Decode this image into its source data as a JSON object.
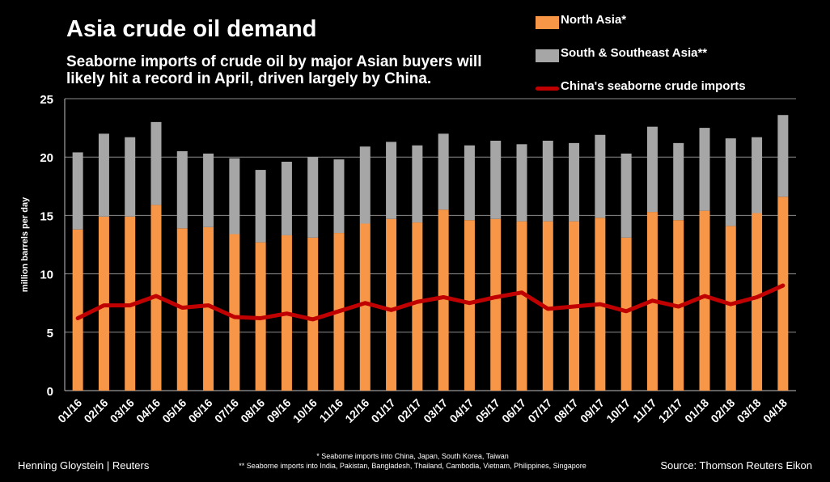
{
  "chart_data": {
    "type": "bar",
    "title": "Asia crude oil demand",
    "subtitle": "Seaborne imports of crude oil by major Asian buyers will likely hit a record in April, driven largely by China.",
    "ylabel": "million barrels per day",
    "xlabel": "",
    "ylim": [
      0,
      25
    ],
    "yticks": [
      0,
      5,
      10,
      15,
      20,
      25
    ],
    "grid": true,
    "legend_position": "top-right",
    "categories": [
      "01/16",
      "02/16",
      "03/16",
      "04/16",
      "05/16",
      "06/16",
      "07/16",
      "08/16",
      "09/16",
      "10/16",
      "11/16",
      "12/16",
      "01/17",
      "02/17",
      "03/17",
      "04/17",
      "05/17",
      "06/17",
      "07/17",
      "08/17",
      "09/17",
      "10/17",
      "11/17",
      "12/17",
      "01/18",
      "02/18",
      "03/18",
      "04/18"
    ],
    "series": [
      {
        "name": "North Asia*",
        "type": "bar-stacked",
        "color": "#F79646",
        "values": [
          13.8,
          14.9,
          14.9,
          15.9,
          13.9,
          14.0,
          13.4,
          12.7,
          13.3,
          13.1,
          13.5,
          14.3,
          14.7,
          14.4,
          15.5,
          14.6,
          14.7,
          14.5,
          14.5,
          14.5,
          14.8,
          13.1,
          15.3,
          14.6,
          15.4,
          14.1,
          15.2,
          16.6
        ]
      },
      {
        "name": "South & Southeast Asia**",
        "type": "bar-stacked",
        "color": "#A6A6A6",
        "values": [
          6.6,
          7.1,
          6.8,
          7.1,
          6.6,
          6.3,
          6.5,
          6.2,
          6.3,
          6.9,
          6.3,
          6.6,
          6.6,
          6.6,
          6.5,
          6.4,
          6.7,
          6.6,
          6.9,
          6.7,
          7.1,
          7.2,
          7.3,
          6.6,
          7.1,
          7.5,
          6.5,
          7.0
        ]
      },
      {
        "name": "China's seaborne crude imports",
        "type": "line",
        "color": "#C00000",
        "values": [
          6.2,
          7.3,
          7.3,
          8.1,
          7.1,
          7.3,
          6.3,
          6.2,
          6.6,
          6.1,
          6.8,
          7.5,
          6.9,
          7.6,
          8.0,
          7.5,
          8.0,
          8.4,
          7.0,
          7.2,
          7.4,
          6.8,
          7.7,
          7.2,
          8.1,
          7.4,
          8.0,
          9.0
        ]
      }
    ]
  },
  "footer": {
    "credit": "Henning Gloystein | Reuters",
    "source": "Source: Thomson Reuters Eikon",
    "note1": "* Seaborne imports into China, Japan, South Korea, Taiwan",
    "note2": "** Seaborne imports into India, Pakistan, Bangladesh, Thailand, Cambodia, Vietnam, Philippines, Singapore"
  }
}
